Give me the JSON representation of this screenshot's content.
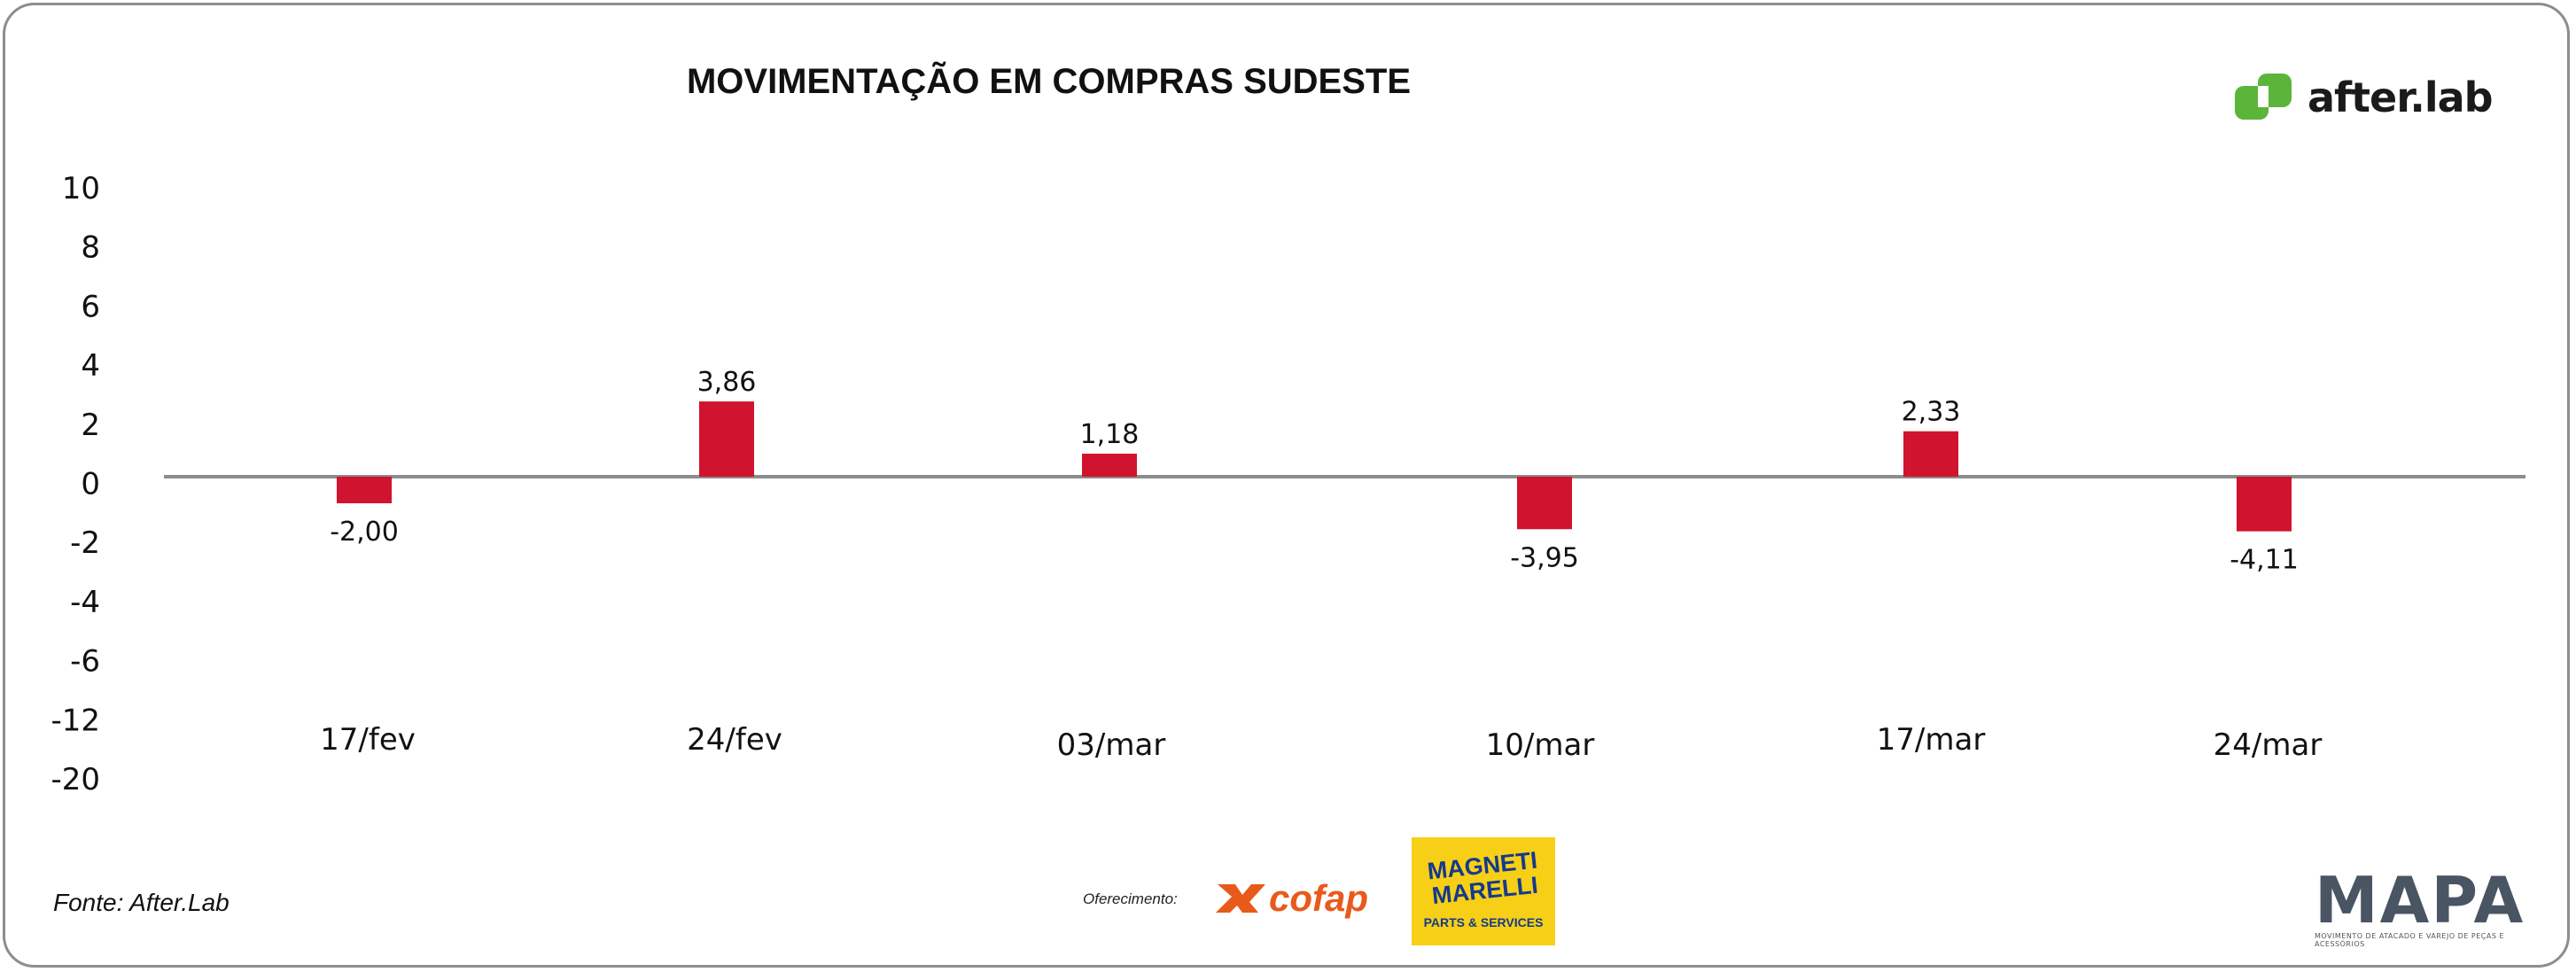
{
  "branding": {
    "logo_text": "after.lab",
    "logo_color": "#5bb53a",
    "sponsor_label": "Oferecimento:",
    "sponsor1_text": "cofap",
    "sponsor2_line1": "MAGNETI",
    "sponsor2_line2": "MARELLI",
    "sponsor2_sub": "PARTS & SERVICES",
    "brand3_text": "MAPA",
    "brand3_sub": "MOVIMENTO DE ATACADO E VAREJO DE PEÇAS E ACESSÓRIOS"
  },
  "source": "Fonte: After.Lab",
  "chart_data": {
    "type": "bar",
    "title": "MOVIMENTAÇÃO EM COMPRAS SUDESTE",
    "categories": [
      "17/fev",
      "24/fev",
      "03/mar",
      "10/mar",
      "17/mar",
      "24/mar"
    ],
    "values": [
      -2.0,
      3.86,
      1.18,
      -3.95,
      2.33,
      -4.11
    ],
    "data_labels": [
      "-2,00",
      "3,86",
      "1,18",
      "-3,95",
      "2,33",
      "-4,11"
    ],
    "y_tick_labels": [
      "10",
      "8",
      "6",
      "4",
      "2",
      "0",
      "-2",
      "-4",
      "-6",
      "-12",
      "-20"
    ],
    "bar_color": "#d0132f",
    "axis_color": "#8d8d8d",
    "grid": false,
    "legend": "none"
  }
}
